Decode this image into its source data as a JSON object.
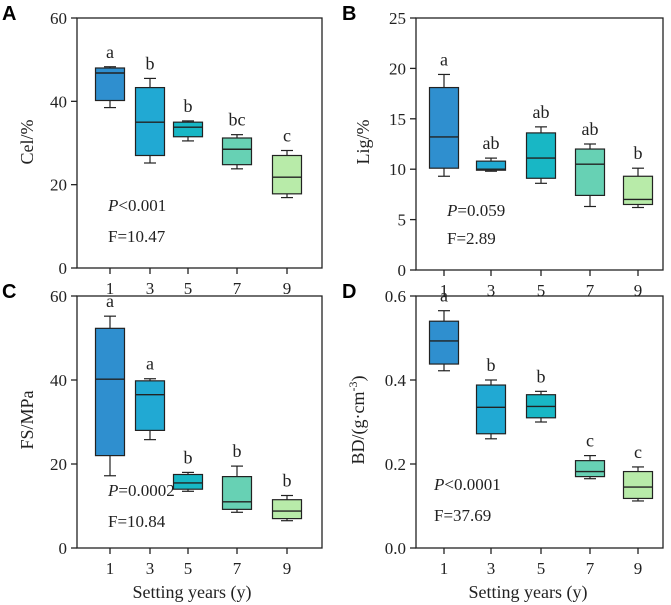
{
  "figure": {
    "xlabel": "Setting years (y)"
  },
  "chart_data": [
    {
      "id": "A",
      "type": "box",
      "panel_label": "A",
      "ylabel": "Cel/%",
      "ylim": [
        0,
        60
      ],
      "yticks": [
        0,
        20,
        40,
        60
      ],
      "categories": [
        "1",
        "3",
        "5",
        "7",
        "9"
      ],
      "colors": [
        "#2f8fcf",
        "#21a9d3",
        "#18b7c5",
        "#67d1b4",
        "#b8eba9"
      ],
      "boxes": [
        {
          "min": 38.5,
          "q1": 40.2,
          "median": 46.8,
          "q3": 48.0,
          "max": 48.3
        },
        {
          "min": 25.2,
          "q1": 27.0,
          "median": 35.0,
          "q3": 43.3,
          "max": 45.5
        },
        {
          "min": 30.5,
          "q1": 31.5,
          "median": 33.8,
          "q3": 35.0,
          "max": 35.3
        },
        {
          "min": 23.8,
          "q1": 24.8,
          "median": 28.5,
          "q3": 31.2,
          "max": 32.0
        },
        {
          "min": 16.9,
          "q1": 17.8,
          "median": 21.8,
          "q3": 27.0,
          "max": 28.2
        }
      ],
      "letters": [
        "a",
        "b",
        "b",
        "bc",
        "c"
      ],
      "stat_p": "<0.001",
      "stat_f": "F=10.47"
    },
    {
      "id": "B",
      "type": "box",
      "panel_label": "B",
      "ylabel": "Lig/%",
      "ylim": [
        0,
        25
      ],
      "yticks": [
        0,
        5,
        10,
        15,
        20,
        25
      ],
      "categories": [
        "1",
        "3",
        "5",
        "7",
        "9"
      ],
      "colors": [
        "#2f8fcf",
        "#21a9d3",
        "#18b7c5",
        "#67d1b4",
        "#b8eba9"
      ],
      "boxes": [
        {
          "min": 9.3,
          "q1": 10.1,
          "median": 13.2,
          "q3": 18.1,
          "max": 19.4
        },
        {
          "min": 9.8,
          "q1": 9.9,
          "median": 10.0,
          "q3": 10.8,
          "max": 11.1
        },
        {
          "min": 8.6,
          "q1": 9.1,
          "median": 11.1,
          "q3": 13.6,
          "max": 14.2
        },
        {
          "min": 6.3,
          "q1": 7.4,
          "median": 10.5,
          "q3": 12.0,
          "max": 12.5
        },
        {
          "min": 6.2,
          "q1": 6.5,
          "median": 7.0,
          "q3": 9.3,
          "max": 10.1
        }
      ],
      "letters": [
        "a",
        "ab",
        "ab",
        "ab",
        "b"
      ],
      "stat_p": "=0.059",
      "stat_f": "F=2.89"
    },
    {
      "id": "C",
      "type": "box",
      "panel_label": "C",
      "ylabel": "FS/MPa",
      "ylim": [
        0,
        60
      ],
      "yticks": [
        0,
        20,
        40,
        60
      ],
      "categories": [
        "1",
        "3",
        "5",
        "7",
        "9"
      ],
      "colors": [
        "#2f8fcf",
        "#21a9d3",
        "#18b7c5",
        "#67d1b4",
        "#b8eba9"
      ],
      "boxes": [
        {
          "min": 17.2,
          "q1": 22.0,
          "median": 40.2,
          "q3": 52.3,
          "max": 55.2
        },
        {
          "min": 25.8,
          "q1": 28.0,
          "median": 36.5,
          "q3": 39.8,
          "max": 40.3
        },
        {
          "min": 13.5,
          "q1": 14.0,
          "median": 15.5,
          "q3": 17.5,
          "max": 18.0
        },
        {
          "min": 8.5,
          "q1": 9.2,
          "median": 11.0,
          "q3": 17.0,
          "max": 19.5
        },
        {
          "min": 6.5,
          "q1": 7.0,
          "median": 8.8,
          "q3": 11.5,
          "max": 12.5
        }
      ],
      "letters": [
        "a",
        "a",
        "b",
        "b",
        "b"
      ],
      "stat_p": "=0.0002",
      "stat_f": "F=10.84"
    },
    {
      "id": "D",
      "type": "box",
      "panel_label": "D",
      "ylabel": "BD/(g·cm⁻³)",
      "ylim": [
        0,
        0.6
      ],
      "yticks": [
        "0.0",
        "0.2",
        "0.4",
        "0.6"
      ],
      "categories": [
        "1",
        "3",
        "5",
        "7",
        "9"
      ],
      "colors": [
        "#2f8fcf",
        "#21a9d3",
        "#18b7c5",
        "#67d1b4",
        "#b8eba9"
      ],
      "boxes": [
        {
          "min": 0.422,
          "q1": 0.438,
          "median": 0.493,
          "q3": 0.54,
          "max": 0.565
        },
        {
          "min": 0.26,
          "q1": 0.272,
          "median": 0.335,
          "q3": 0.388,
          "max": 0.4
        },
        {
          "min": 0.3,
          "q1": 0.31,
          "median": 0.337,
          "q3": 0.365,
          "max": 0.373
        },
        {
          "min": 0.165,
          "q1": 0.17,
          "median": 0.182,
          "q3": 0.208,
          "max": 0.22
        },
        {
          "min": 0.112,
          "q1": 0.118,
          "median": 0.145,
          "q3": 0.182,
          "max": 0.193
        }
      ],
      "letters": [
        "a",
        "b",
        "b",
        "c",
        "c"
      ],
      "stat_p": "<0.0001",
      "stat_f": "F=37.69"
    }
  ]
}
